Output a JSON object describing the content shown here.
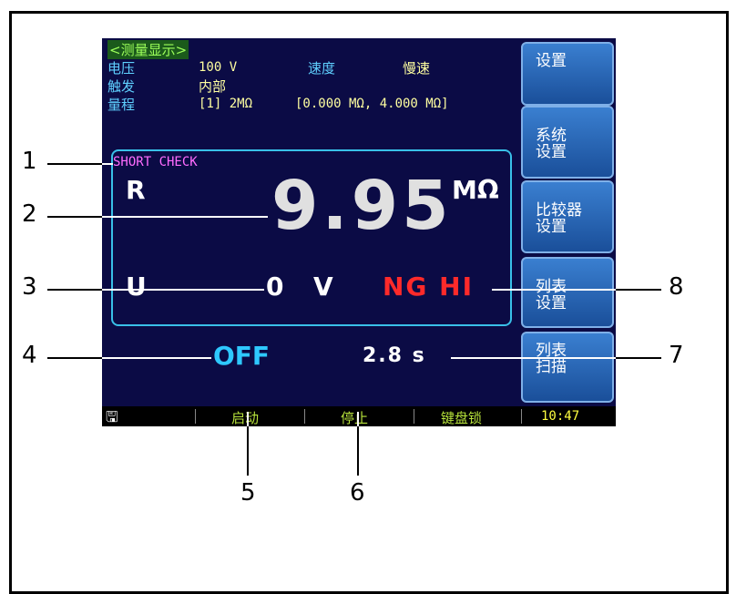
{
  "screen": {
    "title": "<测量显示>",
    "params": [
      [
        "电压",
        "100 V",
        "速度",
        "慢速"
      ],
      [
        "触发",
        "内部"
      ],
      [
        "量程",
        "[1] 2MΩ",
        "[0.000 MΩ, 4.000 MΩ]"
      ]
    ],
    "short_check": "SHORT CHECK",
    "resistance": {
      "label": "R",
      "value": "9.95",
      "unit": "MΩ"
    },
    "voltage": {
      "label": "U",
      "value": "0",
      "unit": "V"
    },
    "result": "NG HI",
    "status": "OFF",
    "time": "2.8 s",
    "buttons": [
      [
        "设置"
      ],
      [
        "系统",
        "设置"
      ],
      [
        "比较器",
        "设置"
      ],
      [
        "列表",
        "设置"
      ],
      [
        "列表",
        "扫描"
      ]
    ],
    "statusbar": {
      "icon": "🖫",
      "items": [
        "启动",
        "停止",
        "键盘锁"
      ],
      "clock": "10:47"
    }
  },
  "callouts": [
    "1",
    "2",
    "3",
    "4",
    "5",
    "6",
    "7",
    "8"
  ]
}
